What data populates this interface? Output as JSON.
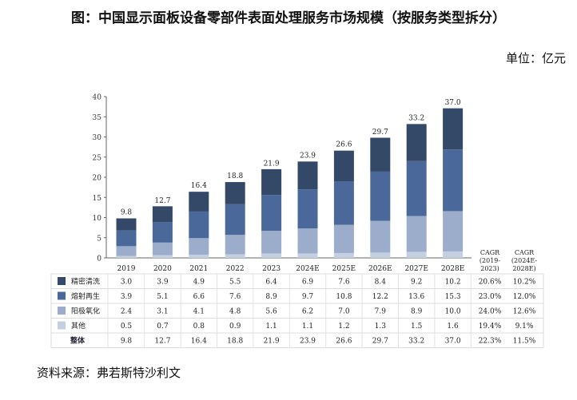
{
  "title": "图：中国显示面板设备零部件表面处理服务市场规模（按服务类型拆分）",
  "unit": "单位：亿元",
  "source": "资料来源：弗若斯特沙利文",
  "chart_data": {
    "type": "bar",
    "stacked": true,
    "categories": [
      "2019",
      "2020",
      "2021",
      "2022",
      "2023",
      "2024E",
      "2025E",
      "2026E",
      "2027E",
      "2028E"
    ],
    "ylim": [
      0,
      40
    ],
    "yticks": [
      0,
      5,
      10,
      15,
      20,
      25,
      30,
      35,
      40
    ],
    "grid": false,
    "series": [
      {
        "name": "其他",
        "color": "#c5cfe2",
        "values": [
          0.5,
          0.7,
          0.8,
          0.9,
          1.1,
          1.1,
          1.2,
          1.3,
          1.5,
          1.6
        ],
        "cagr": [
          "19.4%",
          "9.1%"
        ]
      },
      {
        "name": "阳极氧化",
        "color": "#9badca",
        "values": [
          2.4,
          3.1,
          4.1,
          4.8,
          5.6,
          6.2,
          7.0,
          7.9,
          8.9,
          10.0
        ],
        "cagr": [
          "24.0%",
          "12.6%"
        ]
      },
      {
        "name": "熔射再生",
        "color": "#4a6899",
        "values": [
          3.9,
          5.1,
          6.6,
          7.6,
          8.9,
          9.7,
          10.8,
          12.2,
          13.6,
          15.3
        ],
        "cagr": [
          "23.0%",
          "12.0%"
        ]
      },
      {
        "name": "精密清洗",
        "color": "#344868",
        "values": [
          3.0,
          3.9,
          4.9,
          5.5,
          6.4,
          6.9,
          7.6,
          8.4,
          9.2,
          10.2
        ],
        "cagr": [
          "20.6%",
          "10.2%"
        ]
      }
    ],
    "totals": {
      "name": "整体",
      "values": [
        9.8,
        12.7,
        16.4,
        18.8,
        21.9,
        23.9,
        26.6,
        29.7,
        33.2,
        37.0
      ],
      "cagr": [
        "22.3%",
        "11.5%"
      ]
    },
    "cagr_headers": [
      [
        "CAGR",
        "(2019-",
        "2023)"
      ],
      [
        "CAGR",
        "(2024E-",
        "2028E)"
      ]
    ]
  }
}
